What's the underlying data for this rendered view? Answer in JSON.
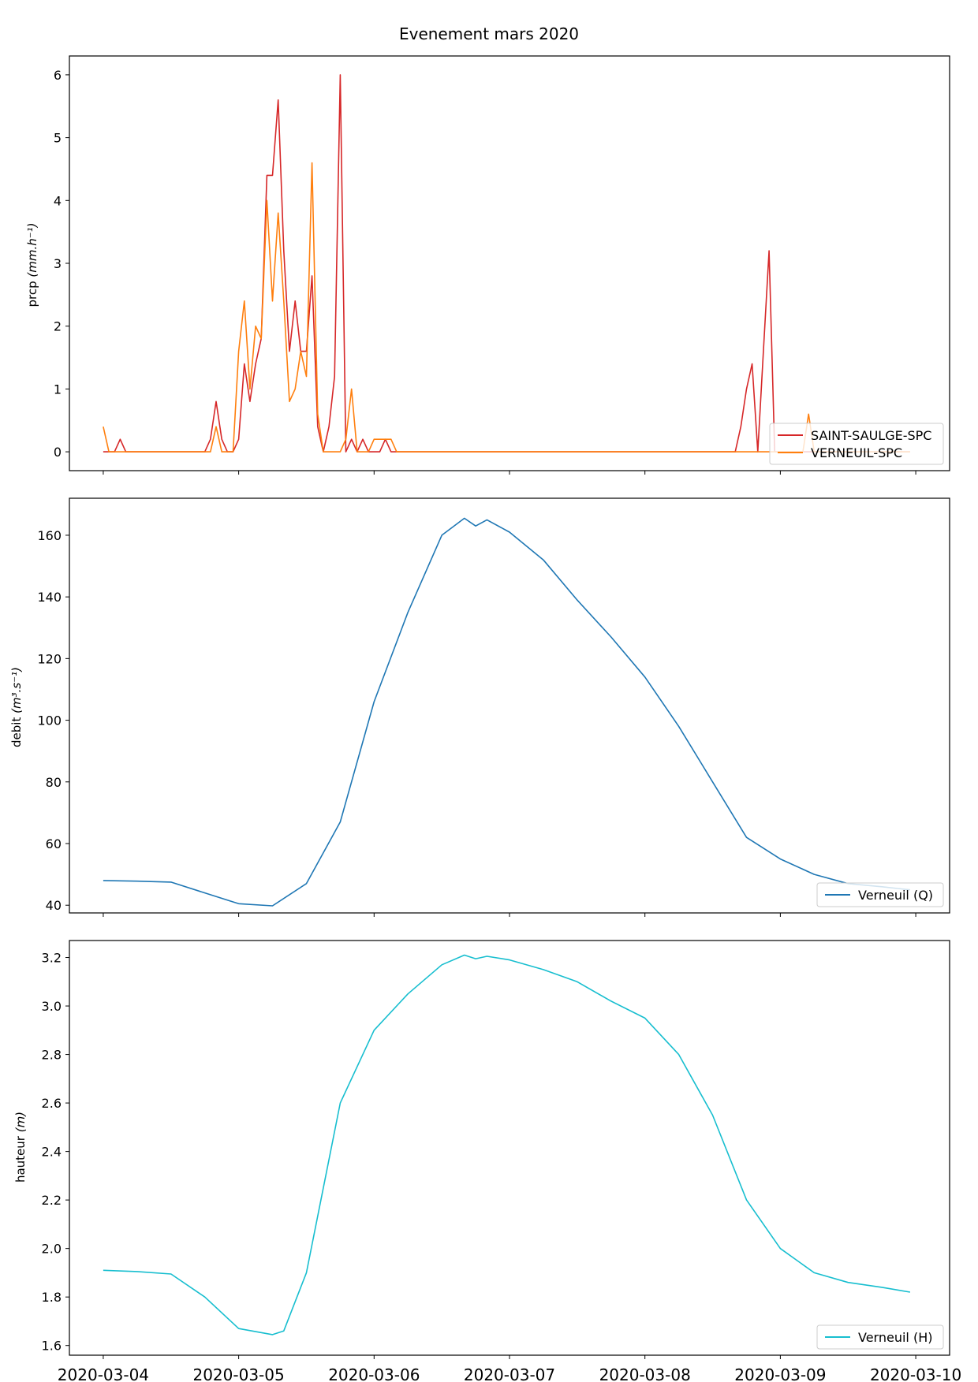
{
  "chart_data": {
    "title": "Evenement mars 2020",
    "type": "line",
    "x_tick_labels": [
      "2020-03-04",
      "2020-03-05",
      "2020-03-06",
      "2020-03-07",
      "2020-03-08",
      "2020-03-09",
      "2020-03-10"
    ],
    "xlim": [
      "2020-03-03 18:00",
      "2020-03-10 06:00"
    ],
    "panels": [
      {
        "ylabel": "prcp",
        "ylabel_unit": "(mm.h⁻¹)",
        "ylim": [
          -0.3,
          6.3
        ],
        "yticks": [
          0,
          1,
          2,
          3,
          4,
          5,
          6
        ],
        "legend_loc": "lower right",
        "series": [
          {
            "name": "SAINT-SAULGE-SPC",
            "color": "#d62728",
            "x": [
              "2020-03-04 00:00",
              "2020-03-04 01:00",
              "2020-03-04 02:00",
              "2020-03-04 03:00",
              "2020-03-04 04:00",
              "2020-03-04 18:00",
              "2020-03-04 19:00",
              "2020-03-04 20:00",
              "2020-03-04 21:00",
              "2020-03-04 22:00",
              "2020-03-04 23:00",
              "2020-03-05 00:00",
              "2020-03-05 01:00",
              "2020-03-05 02:00",
              "2020-03-05 03:00",
              "2020-03-05 04:00",
              "2020-03-05 05:00",
              "2020-03-05 06:00",
              "2020-03-05 07:00",
              "2020-03-05 08:00",
              "2020-03-05 09:00",
              "2020-03-05 10:00",
              "2020-03-05 11:00",
              "2020-03-05 12:00",
              "2020-03-05 13:00",
              "2020-03-05 14:00",
              "2020-03-05 15:00",
              "2020-03-05 16:00",
              "2020-03-05 17:00",
              "2020-03-05 18:00",
              "2020-03-05 19:00",
              "2020-03-05 20:00",
              "2020-03-05 21:00",
              "2020-03-05 22:00",
              "2020-03-05 23:00",
              "2020-03-06 00:00",
              "2020-03-06 01:00",
              "2020-03-06 02:00",
              "2020-03-06 03:00",
              "2020-03-08 16:00",
              "2020-03-08 17:00",
              "2020-03-08 18:00",
              "2020-03-08 19:00",
              "2020-03-08 20:00",
              "2020-03-08 21:00",
              "2020-03-08 22:00",
              "2020-03-08 23:00",
              "2020-03-09 00:00",
              "2020-03-09 23:00"
            ],
            "y": [
              0,
              0,
              0,
              0.2,
              0,
              0,
              0.2,
              0.8,
              0.2,
              0,
              0,
              0.2,
              1.4,
              0.8,
              1.4,
              1.8,
              4.4,
              4.4,
              5.6,
              3.2,
              1.6,
              2.4,
              1.6,
              1.6,
              2.8,
              0.4,
              0,
              0.4,
              1.2,
              6.0,
              0,
              0.2,
              0,
              0.2,
              0,
              0,
              0,
              0.2,
              0,
              0,
              0.4,
              1.0,
              1.4,
              0,
              1.6,
              3.2,
              0,
              0,
              0
            ]
          },
          {
            "name": "VERNEUIL-SPC",
            "color": "#ff7f0e",
            "x": [
              "2020-03-04 00:00",
              "2020-03-04 01:00",
              "2020-03-04 02:00",
              "2020-03-04 18:00",
              "2020-03-04 19:00",
              "2020-03-04 20:00",
              "2020-03-04 21:00",
              "2020-03-04 22:00",
              "2020-03-04 23:00",
              "2020-03-05 00:00",
              "2020-03-05 01:00",
              "2020-03-05 02:00",
              "2020-03-05 03:00",
              "2020-03-05 04:00",
              "2020-03-05 05:00",
              "2020-03-05 06:00",
              "2020-03-05 07:00",
              "2020-03-05 08:00",
              "2020-03-05 09:00",
              "2020-03-05 10:00",
              "2020-03-05 11:00",
              "2020-03-05 12:00",
              "2020-03-05 13:00",
              "2020-03-05 14:00",
              "2020-03-05 15:00",
              "2020-03-05 16:00",
              "2020-03-05 17:00",
              "2020-03-05 18:00",
              "2020-03-05 19:00",
              "2020-03-05 20:00",
              "2020-03-05 21:00",
              "2020-03-05 22:00",
              "2020-03-05 23:00",
              "2020-03-06 00:00",
              "2020-03-06 01:00",
              "2020-03-06 02:00",
              "2020-03-06 03:00",
              "2020-03-06 04:00",
              "2020-03-08 20:00",
              "2020-03-08 21:00",
              "2020-03-08 22:00",
              "2020-03-08 23:00",
              "2020-03-09 00:00",
              "2020-03-09 04:00",
              "2020-03-09 05:00",
              "2020-03-09 06:00",
              "2020-03-09 07:00",
              "2020-03-09 08:00",
              "2020-03-09 23:00"
            ],
            "y": [
              0.4,
              0,
              0,
              0,
              0,
              0.4,
              0,
              0,
              0,
              1.6,
              2.4,
              1.0,
              2.0,
              1.8,
              4.0,
              2.4,
              3.8,
              2.4,
              0.8,
              1.0,
              1.6,
              1.2,
              4.6,
              0.6,
              0,
              0,
              0,
              0,
              0.2,
              1.0,
              0,
              0,
              0,
              0.2,
              0.2,
              0.2,
              0.2,
              0,
              0,
              0,
              0,
              0,
              0,
              0,
              0.6,
              0,
              0,
              0,
              0
            ]
          }
        ]
      },
      {
        "ylabel": "debit",
        "ylabel_unit": "(m³.s⁻¹)",
        "ylim": [
          37.5,
          172
        ],
        "yticks": [
          40,
          60,
          80,
          100,
          120,
          140,
          160
        ],
        "legend_loc": "lower right",
        "series": [
          {
            "name": "Verneuil (Q)",
            "color": "#1f77b4",
            "x": [
              "2020-03-04 00:00",
              "2020-03-04 06:00",
              "2020-03-04 12:00",
              "2020-03-04 18:00",
              "2020-03-05 00:00",
              "2020-03-05 06:00",
              "2020-03-05 12:00",
              "2020-03-05 18:00",
              "2020-03-06 00:00",
              "2020-03-06 06:00",
              "2020-03-06 12:00",
              "2020-03-06 16:00",
              "2020-03-06 18:00",
              "2020-03-06 20:00",
              "2020-03-07 00:00",
              "2020-03-07 06:00",
              "2020-03-07 12:00",
              "2020-03-07 18:00",
              "2020-03-08 00:00",
              "2020-03-08 06:00",
              "2020-03-08 12:00",
              "2020-03-08 18:00",
              "2020-03-09 00:00",
              "2020-03-09 06:00",
              "2020-03-09 12:00",
              "2020-03-09 18:00",
              "2020-03-09 23:00"
            ],
            "y": [
              48,
              47.8,
              47.5,
              44,
              40.5,
              39.8,
              47,
              67,
              106,
              135,
              160,
              165.5,
              163,
              165,
              161,
              152,
              139,
              127,
              114,
              98,
              80,
              62,
              55,
              50,
              47,
              46,
              45
            ]
          }
        ]
      },
      {
        "ylabel": "hauteur",
        "ylabel_unit": "(m)",
        "ylim": [
          1.56,
          3.27
        ],
        "yticks": [
          1.6,
          1.8,
          2.0,
          2.2,
          2.4,
          2.6,
          2.8,
          3.0,
          3.2
        ],
        "legend_loc": "lower right",
        "series": [
          {
            "name": "Verneuil (H)",
            "color": "#17becf",
            "x": [
              "2020-03-04 00:00",
              "2020-03-04 06:00",
              "2020-03-04 12:00",
              "2020-03-04 18:00",
              "2020-03-05 00:00",
              "2020-03-05 06:00",
              "2020-03-05 08:00",
              "2020-03-05 12:00",
              "2020-03-05 18:00",
              "2020-03-06 00:00",
              "2020-03-06 06:00",
              "2020-03-06 12:00",
              "2020-03-06 16:00",
              "2020-03-06 18:00",
              "2020-03-06 20:00",
              "2020-03-07 00:00",
              "2020-03-07 06:00",
              "2020-03-07 12:00",
              "2020-03-07 18:00",
              "2020-03-08 00:00",
              "2020-03-08 06:00",
              "2020-03-08 12:00",
              "2020-03-08 18:00",
              "2020-03-09 00:00",
              "2020-03-09 06:00",
              "2020-03-09 12:00",
              "2020-03-09 18:00",
              "2020-03-09 23:00"
            ],
            "y": [
              1.91,
              1.905,
              1.895,
              1.8,
              1.67,
              1.645,
              1.66,
              1.9,
              2.6,
              2.9,
              3.05,
              3.17,
              3.21,
              3.195,
              3.205,
              3.19,
              3.15,
              3.1,
              3.02,
              2.95,
              2.8,
              2.55,
              2.2,
              2.0,
              1.9,
              1.86,
              1.84,
              1.82
            ]
          }
        ]
      }
    ]
  }
}
